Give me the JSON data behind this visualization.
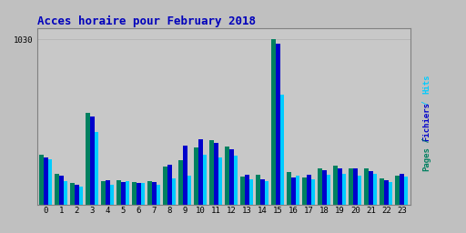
{
  "title": "Acces horaire pour February 2018",
  "hours": [
    0,
    1,
    2,
    3,
    4,
    5,
    6,
    7,
    8,
    9,
    10,
    11,
    12,
    13,
    14,
    15,
    16,
    17,
    18,
    19,
    20,
    21,
    22,
    23
  ],
  "pages": [
    310,
    195,
    138,
    575,
    148,
    155,
    143,
    148,
    238,
    278,
    355,
    405,
    365,
    178,
    188,
    1032,
    205,
    172,
    230,
    242,
    230,
    226,
    167,
    182
  ],
  "fichiers": [
    293,
    183,
    126,
    550,
    152,
    143,
    137,
    145,
    252,
    370,
    410,
    385,
    345,
    186,
    162,
    1005,
    172,
    190,
    215,
    230,
    226,
    212,
    157,
    191
  ],
  "hits": [
    286,
    150,
    116,
    455,
    127,
    147,
    137,
    127,
    166,
    181,
    315,
    295,
    305,
    161,
    151,
    686,
    181,
    161,
    186,
    191,
    181,
    196,
    141,
    176
  ],
  "color_pages": "#008060",
  "color_fichiers": "#0000CC",
  "color_hits": "#00CCFF",
  "bg_color": "#C0C0C0",
  "plot_bg": "#C8C8C8",
  "title_color": "#0000BB",
  "grid_color": "#B0B0B0",
  "ylim": [
    0,
    1100
  ],
  "ytick_val": 1030,
  "bar_width": 0.27,
  "ylabel_pages_color": "#008060",
  "ylabel_slash_color": "#008060",
  "ylabel_fichiers_color": "#0000CC",
  "ylabel_hits_color": "#00CCFF"
}
